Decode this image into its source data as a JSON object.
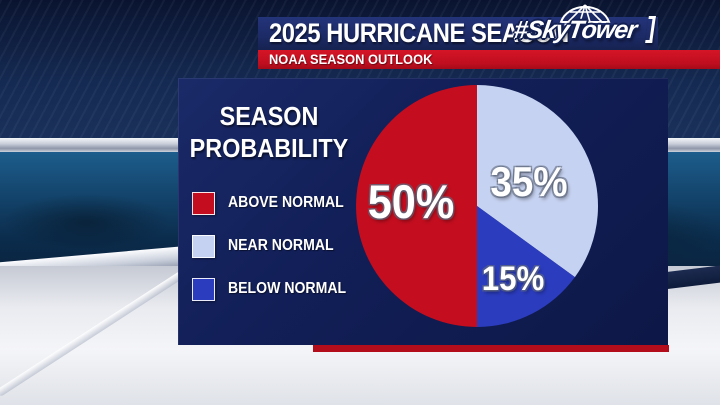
{
  "banner": {
    "title": "2025 HURRICANE SEASON",
    "subtitle": "NOAA SEASON OUTLOOK",
    "logo_text": "#SkyTower"
  },
  "panel": {
    "title_line1": "SEASON",
    "title_line2": "PROBABILITY",
    "legend": [
      {
        "label": "ABOVE NORMAL",
        "color": "#c40e1f"
      },
      {
        "label": "NEAR NORMAL",
        "color": "#c6d2f1"
      },
      {
        "label": "BELOW NORMAL",
        "color": "#2b3cbe"
      }
    ]
  },
  "chart_data": {
    "type": "pie",
    "title": "SEASON PROBABILITY",
    "source_label": "NOAA SEASON OUTLOOK",
    "start_angle_deg_from_top": 0,
    "direction": "clockwise",
    "legend_position": "left",
    "slices": [
      {
        "label": "NEAR NORMAL",
        "value": 35,
        "display": "35%",
        "color": "#c6d2f1"
      },
      {
        "label": "BELOW NORMAL",
        "value": 15,
        "display": "15%",
        "color": "#2b3cbe"
      },
      {
        "label": "ABOVE NORMAL",
        "value": 50,
        "display": "50%",
        "color": "#c40e1f"
      }
    ]
  },
  "colors": {
    "banner_navy": "#1c2a66",
    "accent_red": "#c00e1f",
    "panel_navy": "#101d55",
    "text_white": "#ffffff"
  }
}
